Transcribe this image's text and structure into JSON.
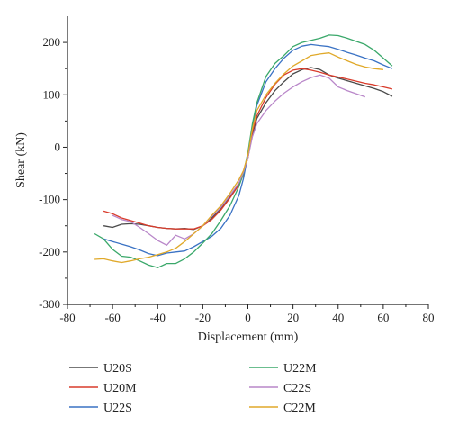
{
  "chart_data": {
    "type": "line",
    "xlabel": "Displacement (mm)",
    "ylabel": "Shear (kN)",
    "xlim": [
      -80,
      80
    ],
    "ylim": [
      -300,
      250
    ],
    "xticks": [
      -80,
      -60,
      -40,
      -20,
      0,
      20,
      40,
      60,
      80
    ],
    "yticks": [
      -300,
      -200,
      -100,
      0,
      100,
      200
    ],
    "xtick_labels": [
      "-80",
      "-60",
      "-40",
      "-20",
      "0",
      "20",
      "40",
      "60",
      "80"
    ],
    "ytick_labels": [
      "-300",
      "-200",
      "-100",
      "0",
      "100",
      "200"
    ],
    "grid": false,
    "legend_placement": "bottom",
    "series": [
      {
        "name": "U20S",
        "color": "#4a4a4a",
        "x": [
          -64,
          -60,
          -56,
          -52,
          -48,
          -44,
          -40,
          -36,
          -32,
          -28,
          -24,
          -20,
          -16,
          -12,
          -8,
          -4,
          -2,
          0,
          2,
          4,
          8,
          12,
          16,
          20,
          24,
          28,
          32,
          36,
          40,
          44,
          48,
          52,
          56,
          60,
          64
        ],
        "y": [
          -150,
          -153,
          -147,
          -146,
          -147,
          -150,
          -153,
          -155,
          -156,
          -155,
          -157,
          -150,
          -135,
          -118,
          -95,
          -70,
          -50,
          -20,
          25,
          55,
          85,
          108,
          125,
          140,
          148,
          152,
          148,
          138,
          132,
          127,
          122,
          117,
          112,
          106,
          97
        ]
      },
      {
        "name": "U20M",
        "color": "#d93b2b",
        "x": [
          -64,
          -60,
          -56,
          -52,
          -48,
          -44,
          -40,
          -36,
          -32,
          -28,
          -24,
          -20,
          -16,
          -12,
          -8,
          -4,
          -2,
          0,
          2,
          4,
          8,
          12,
          16,
          20,
          24,
          28,
          32,
          36,
          40,
          44,
          48,
          52,
          56,
          60,
          64
        ],
        "y": [
          -122,
          -127,
          -135,
          -140,
          -145,
          -150,
          -153,
          -155,
          -156,
          -156,
          -156,
          -150,
          -138,
          -120,
          -97,
          -72,
          -52,
          -20,
          30,
          60,
          95,
          120,
          138,
          147,
          150,
          147,
          143,
          138,
          134,
          130,
          126,
          122,
          119,
          115,
          111
        ]
      },
      {
        "name": "U22S",
        "color": "#3a72c4",
        "x": [
          -64,
          -60,
          -56,
          -52,
          -48,
          -44,
          -40,
          -36,
          -32,
          -28,
          -24,
          -20,
          -16,
          -12,
          -8,
          -4,
          -2,
          0,
          2,
          4,
          8,
          12,
          16,
          20,
          24,
          28,
          32,
          36,
          40,
          44,
          48,
          52,
          56,
          60,
          64
        ],
        "y": [
          -175,
          -180,
          -185,
          -190,
          -196,
          -203,
          -207,
          -202,
          -200,
          -198,
          -190,
          -180,
          -170,
          -155,
          -130,
          -92,
          -60,
          -15,
          40,
          80,
          125,
          150,
          170,
          185,
          193,
          196,
          194,
          192,
          187,
          181,
          176,
          170,
          165,
          157,
          150
        ]
      },
      {
        "name": "U22M",
        "color": "#3aa86a",
        "x": [
          -68,
          -64,
          -60,
          -56,
          -52,
          -48,
          -44,
          -40,
          -36,
          -32,
          -28,
          -24,
          -20,
          -16,
          -12,
          -8,
          -4,
          -2,
          0,
          2,
          4,
          8,
          12,
          16,
          20,
          24,
          28,
          32,
          36,
          40,
          44,
          48,
          52,
          56,
          60,
          64
        ],
        "y": [
          -165,
          -175,
          -195,
          -208,
          -210,
          -217,
          -225,
          -230,
          -222,
          -222,
          -213,
          -200,
          -183,
          -165,
          -140,
          -112,
          -75,
          -50,
          -10,
          45,
          85,
          135,
          160,
          175,
          192,
          200,
          204,
          208,
          214,
          213,
          208,
          202,
          196,
          185,
          170,
          155
        ]
      },
      {
        "name": "C22S",
        "color": "#b987c9",
        "x": [
          -60,
          -56,
          -52,
          -48,
          -44,
          -40,
          -36,
          -32,
          -28,
          -24,
          -20,
          -16,
          -12,
          -8,
          -4,
          -2,
          0,
          2,
          4,
          8,
          12,
          16,
          20,
          24,
          28,
          32,
          36,
          40,
          44,
          48,
          52
        ],
        "y": [
          -130,
          -138,
          -142,
          -153,
          -165,
          -178,
          -187,
          -168,
          -175,
          -165,
          -150,
          -132,
          -115,
          -92,
          -68,
          -48,
          -20,
          20,
          45,
          70,
          88,
          103,
          115,
          125,
          133,
          138,
          132,
          115,
          108,
          102,
          96
        ]
      },
      {
        "name": "C22M",
        "color": "#e0a92a",
        "x": [
          -68,
          -64,
          -60,
          -56,
          -52,
          -48,
          -44,
          -40,
          -36,
          -32,
          -28,
          -24,
          -20,
          -16,
          -12,
          -8,
          -4,
          -2,
          0,
          2,
          4,
          8,
          12,
          16,
          20,
          24,
          28,
          32,
          36,
          40,
          44,
          48,
          52,
          56,
          60
        ],
        "y": [
          -214,
          -213,
          -217,
          -220,
          -217,
          -213,
          -210,
          -205,
          -200,
          -193,
          -180,
          -165,
          -150,
          -130,
          -112,
          -88,
          -62,
          -45,
          -15,
          35,
          70,
          100,
          122,
          140,
          155,
          165,
          175,
          178,
          180,
          172,
          165,
          158,
          153,
          150,
          148
        ]
      }
    ]
  }
}
